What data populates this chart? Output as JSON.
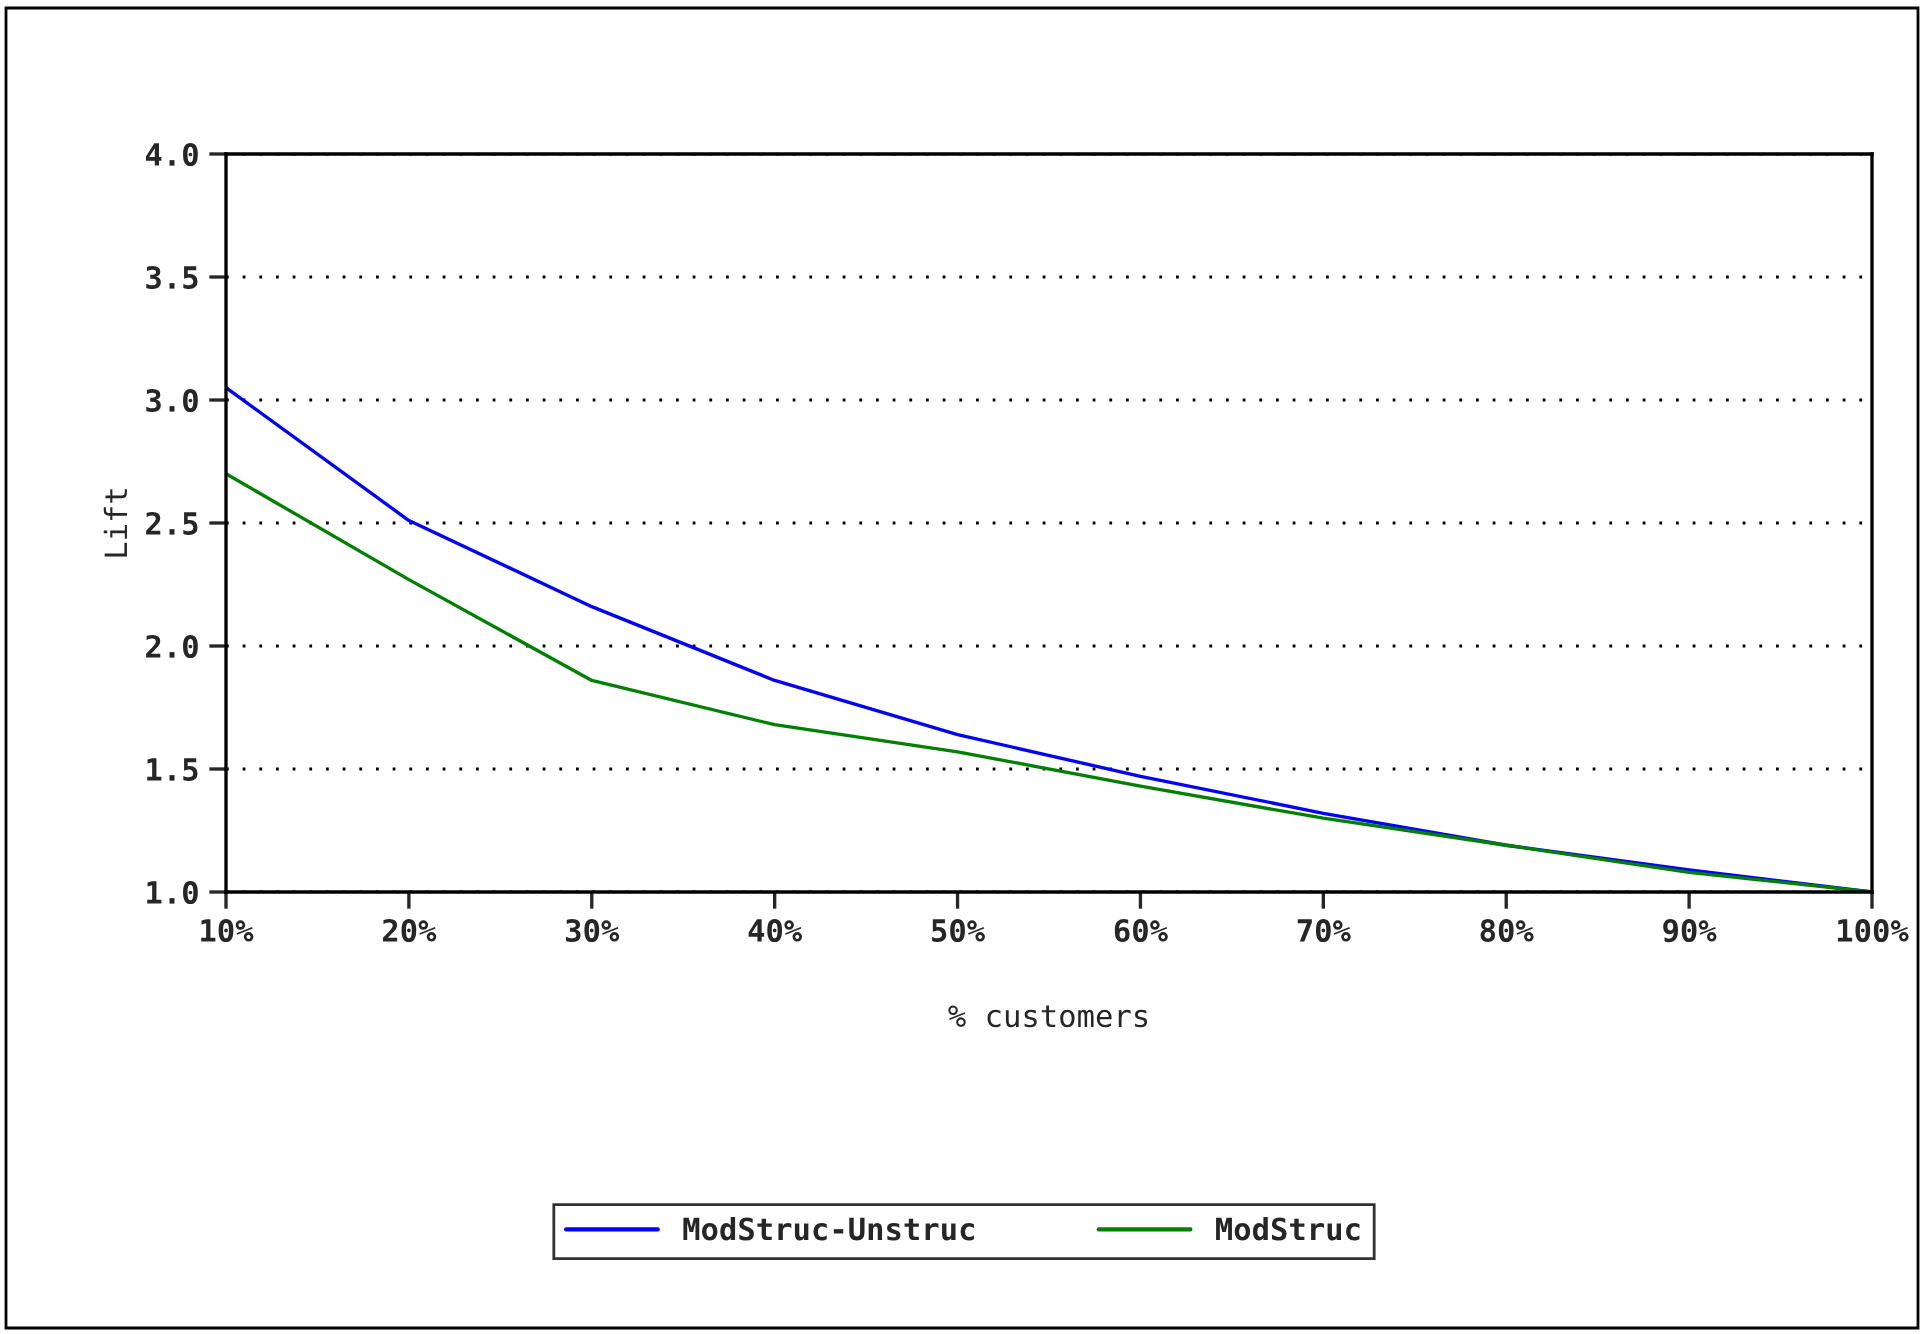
{
  "chart_data": {
    "type": "line",
    "xlabel": "% customers",
    "ylabel": "Lift",
    "categories": [
      "10%",
      "20%",
      "30%",
      "40%",
      "50%",
      "60%",
      "70%",
      "80%",
      "90%",
      "100%"
    ],
    "series": [
      {
        "name": "ModStruc-Unstruc",
        "color": "#0000ff",
        "values": [
          3.05,
          2.51,
          2.16,
          1.86,
          1.64,
          1.47,
          1.32,
          1.19,
          1.09,
          1.0
        ]
      },
      {
        "name": "ModStruc",
        "color": "#008000",
        "values": [
          2.7,
          2.27,
          1.86,
          1.68,
          1.57,
          1.43,
          1.3,
          1.19,
          1.08,
          1.0
        ]
      }
    ],
    "ylim": [
      1.0,
      4.0
    ],
    "yticks": [
      {
        "value": 1.0,
        "label": "1.0"
      },
      {
        "value": 1.5,
        "label": "1.5"
      },
      {
        "value": 2.0,
        "label": "2.0"
      },
      {
        "value": 2.5,
        "label": "2.5"
      },
      {
        "value": 3.0,
        "label": "3.0"
      },
      {
        "value": 3.5,
        "label": "3.5"
      },
      {
        "value": 4.0,
        "label": "4.0"
      }
    ],
    "grid": "y",
    "legend": "bottom",
    "marker": "none",
    "line_style": "solid"
  }
}
